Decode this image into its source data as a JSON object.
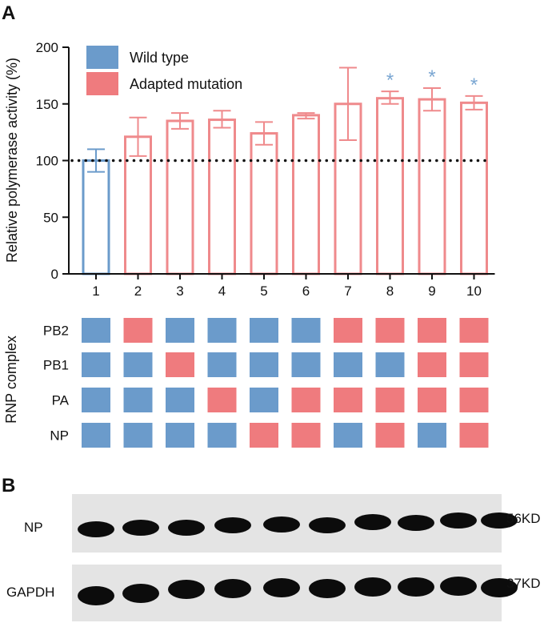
{
  "panel_labels": {
    "a": "A",
    "b": "B"
  },
  "colors": {
    "wild_type": "#6b9bcb",
    "adapted": "#ef7b7e",
    "bar_wild": "#6b9bcb",
    "bar_adapted": "#ef8a8c",
    "star": "#7aa6d2",
    "blot_bg": "#e4e4e4",
    "band": "#0c0c0c"
  },
  "chart_data": {
    "type": "bar",
    "ylabel": "Relative polymerase activity (%)",
    "xlabel": "",
    "ylim": [
      0,
      200
    ],
    "yticks": [
      0,
      50,
      100,
      150,
      200
    ],
    "categories": [
      "1",
      "2",
      "3",
      "4",
      "5",
      "6",
      "7",
      "8",
      "9",
      "10"
    ],
    "values": [
      100,
      121,
      135,
      136,
      124,
      140,
      150,
      155,
      154,
      151
    ],
    "error_low": [
      90,
      104,
      128,
      129,
      114,
      137,
      118,
      150,
      144,
      145
    ],
    "error_high": [
      110,
      138,
      142,
      144,
      134,
      142,
      182,
      161,
      164,
      157
    ],
    "group": [
      "wild",
      "adapted",
      "adapted",
      "adapted",
      "adapted",
      "adapted",
      "adapted",
      "adapted",
      "adapted",
      "adapted"
    ],
    "significance": [
      "",
      "",
      "",
      "",
      "",
      "",
      "",
      "*",
      "*",
      "*"
    ],
    "reference_line": 100,
    "legend": [
      {
        "name": "Wild type",
        "group": "wild"
      },
      {
        "name": "Adapted mutation",
        "group": "adapted"
      }
    ]
  },
  "rnp": {
    "axis_label": "RNP complex",
    "rows": [
      {
        "label": "PB2",
        "cells": [
          "w",
          "a",
          "w",
          "w",
          "w",
          "w",
          "a",
          "a",
          "a",
          "a"
        ]
      },
      {
        "label": "PB1",
        "cells": [
          "w",
          "w",
          "a",
          "w",
          "w",
          "w",
          "w",
          "w",
          "a",
          "a"
        ]
      },
      {
        "label": "PA",
        "cells": [
          "w",
          "w",
          "w",
          "a",
          "w",
          "a",
          "a",
          "a",
          "a",
          "a"
        ]
      },
      {
        "label": "NP",
        "cells": [
          "w",
          "w",
          "w",
          "w",
          "a",
          "a",
          "w",
          "a",
          "w",
          "a"
        ]
      }
    ]
  },
  "blots": [
    {
      "label": "NP",
      "size": "56KD"
    },
    {
      "label": "GAPDH",
      "size": "37KD"
    }
  ]
}
